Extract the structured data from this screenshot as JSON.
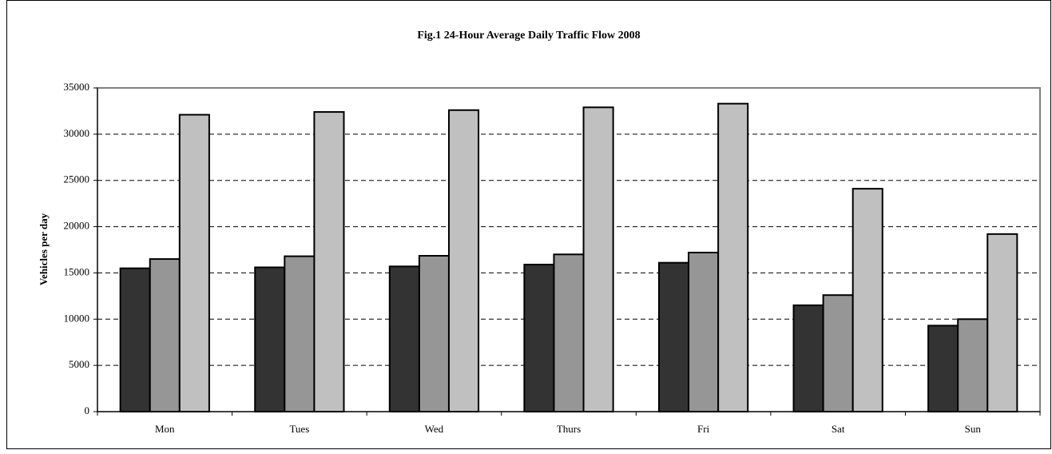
{
  "chart_data": {
    "type": "bar",
    "title": "Fig.1 24-Hour Average Daily Traffic Flow 2008",
    "y_label": "Vehicles per day",
    "categories": [
      "Mon",
      "Tues",
      "Wed",
      "Thurs",
      "Fri",
      "Sat",
      "Sun"
    ],
    "series": [
      {
        "color": "#333333",
        "values": [
          15500,
          15600,
          15700,
          15900,
          16100,
          11500,
          9300
        ]
      },
      {
        "color": "#969696",
        "values": [
          16500,
          16800,
          16850,
          17000,
          17200,
          12600,
          10000
        ]
      },
      {
        "color": "#c0c0c0",
        "values": [
          32100,
          32400,
          32600,
          32900,
          33300,
          24100,
          19200
        ]
      }
    ],
    "ylim": [
      0,
      35000
    ],
    "yticks": [
      0,
      5000,
      10000,
      15000,
      20000,
      25000,
      30000,
      35000
    ],
    "grid": true
  }
}
